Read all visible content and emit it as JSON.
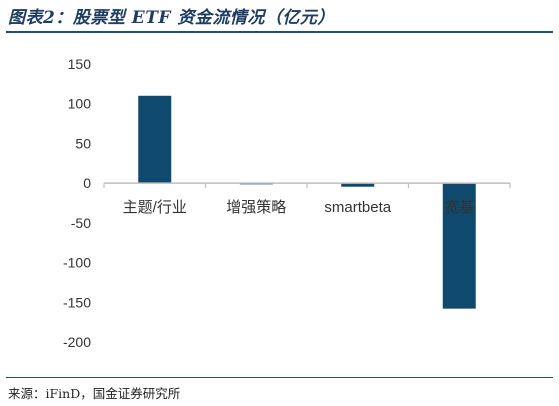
{
  "figure": {
    "title": "图表2：股票型 ETF 资金流情况（亿元）",
    "source": "来源：iFinD，国金证券研究所"
  },
  "colors": {
    "bar": "#0f4a6e",
    "axis": "#bfbfbf",
    "tick_text": "#333333",
    "title": "#1f3d63",
    "rule": "#1f4e79"
  },
  "chart_data": {
    "type": "bar",
    "title": "股票型 ETF 资金流情况（亿元）",
    "xlabel": "",
    "ylabel": "",
    "categories": [
      "主题/行业",
      "增强策略",
      "smartbeta",
      "宽基"
    ],
    "values": [
      110,
      -1.5,
      -4.5,
      -158
    ],
    "ylim": [
      -200,
      150
    ],
    "yticks": [
      150,
      100,
      50,
      0,
      -50,
      -100,
      -150,
      -200
    ],
    "ytick_labels": [
      "150",
      "100",
      "50",
      "0",
      "-50",
      "-100",
      "-150",
      "-200"
    ],
    "grid": false,
    "legend": "none"
  }
}
